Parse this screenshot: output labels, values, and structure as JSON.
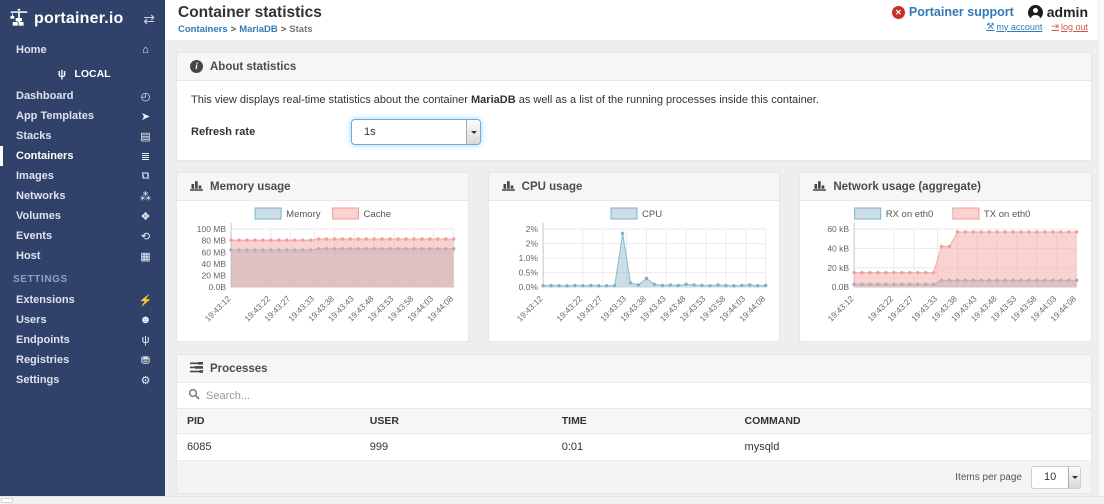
{
  "sidebar": {
    "logo_text": "portainer.io",
    "home": {
      "label": "Home",
      "icon": "home-icon"
    },
    "endpoint": {
      "label": "LOCAL",
      "icon": "plug-icon"
    },
    "menu": [
      {
        "label": "Dashboard",
        "icon": "dashboard-icon"
      },
      {
        "label": "App Templates",
        "icon": "rocket-icon"
      },
      {
        "label": "Stacks",
        "icon": "stacks-icon"
      },
      {
        "label": "Containers",
        "icon": "containers-icon",
        "active": true
      },
      {
        "label": "Images",
        "icon": "images-icon"
      },
      {
        "label": "Networks",
        "icon": "networks-icon"
      },
      {
        "label": "Volumes",
        "icon": "volumes-icon"
      },
      {
        "label": "Events",
        "icon": "events-icon"
      },
      {
        "label": "Host",
        "icon": "host-icon"
      }
    ],
    "settings_header": "SETTINGS",
    "settings_menu": [
      {
        "label": "Extensions",
        "icon": "bolt-icon"
      },
      {
        "label": "Users",
        "icon": "users-icon"
      },
      {
        "label": "Endpoints",
        "icon": "endpoints-icon"
      },
      {
        "label": "Registries",
        "icon": "registries-icon"
      },
      {
        "label": "Settings",
        "icon": "gear-icon"
      }
    ]
  },
  "header": {
    "title": "Container statistics",
    "breadcrumb": [
      "Containers",
      "MariaDB",
      "Stats"
    ],
    "breadcrumb_separator": ">",
    "support_label": "Portainer support",
    "username": "admin",
    "my_account_label": "my account",
    "log_out_label": "log out"
  },
  "about": {
    "title": "About statistics",
    "desc_pre": "This view displays real-time statistics about the container ",
    "container_name": "MariaDB",
    "desc_post": " as well as a list of the running processes inside this container.",
    "refresh_label": "Refresh rate",
    "refresh_value": "1s"
  },
  "chart_data": [
    {
      "type": "line",
      "title": "Memory usage",
      "x_start_label": "19:43:12",
      "x_interval_seconds": 2,
      "x_tick_labels": [
        "19:43:12",
        "19:43:22",
        "19:43:27",
        "19:43:33",
        "19:43:38",
        "19:43:43",
        "19:43:48",
        "19:43:53",
        "19:43:58",
        "19:44:03",
        "19:44:08"
      ],
      "x_tick_indices": [
        0,
        5,
        7.5,
        10.5,
        13,
        15.5,
        18,
        20.5,
        23,
        25.5,
        28
      ],
      "y_ticks": [
        {
          "label": "100 MB",
          "value": 100
        },
        {
          "label": "80 MB",
          "value": 80
        },
        {
          "label": "60 MB",
          "value": 60
        },
        {
          "label": "40 MB",
          "value": 40
        },
        {
          "label": "20 MB",
          "value": 20
        },
        {
          "label": "0.0B",
          "value": 0
        }
      ],
      "y_max": 100,
      "legend_position": "top",
      "grid": true,
      "series": [
        {
          "name": "Memory",
          "color": "#7fb1cc",
          "fill": "rgba(151,187,205,0.5)",
          "values": [
            64,
            64,
            64,
            64,
            64,
            64,
            64,
            64,
            64,
            64,
            64,
            66,
            66,
            66,
            66,
            66,
            66,
            66,
            66,
            66,
            66,
            66,
            66,
            66,
            66,
            66,
            66,
            66,
            66
          ]
        },
        {
          "name": "Cache",
          "color": "#f19e9e",
          "fill": "rgba(245,166,160,0.5)",
          "values": [
            81,
            81,
            81,
            81,
            81,
            81,
            81,
            81,
            81,
            81,
            81,
            83,
            83,
            83,
            83,
            83,
            83,
            83,
            83,
            83,
            83,
            83,
            83,
            83,
            83,
            83,
            83,
            83,
            83
          ]
        }
      ]
    },
    {
      "type": "line",
      "title": "CPU usage",
      "x_start_label": "19:43:12",
      "x_interval_seconds": 2,
      "x_tick_labels": [
        "19:43:12",
        "19:43:22",
        "19:43:27",
        "19:43:33",
        "19:43:38",
        "19:43:43",
        "19:43:48",
        "19:43:53",
        "19:43:58",
        "19:44:03",
        "19:44:08"
      ],
      "x_tick_indices": [
        0,
        5,
        7.5,
        10.5,
        13,
        15.5,
        18,
        20.5,
        23,
        25.5,
        28
      ],
      "y_ticks": [
        {
          "label": "2%",
          "value": 2
        },
        {
          "label": "2%",
          "value": 1.5
        },
        {
          "label": "1.0%",
          "value": 1
        },
        {
          "label": "0.5%",
          "value": 0.5
        },
        {
          "label": "0.0%",
          "value": 0
        }
      ],
      "y_max": 2,
      "legend_position": "top",
      "grid": true,
      "series": [
        {
          "name": "CPU",
          "color": "#7fb1cc",
          "fill": "rgba(151,187,205,0.5)",
          "values": [
            0.05,
            0.06,
            0.05,
            0.05,
            0.06,
            0.05,
            0.06,
            0.05,
            0.05,
            0.06,
            1.85,
            0.15,
            0.08,
            0.3,
            0.1,
            0.06,
            0.08,
            0.06,
            0.1,
            0.08,
            0.06,
            0.05,
            0.08,
            0.06,
            0.05,
            0.06,
            0.08,
            0.05,
            0.06
          ]
        }
      ]
    },
    {
      "type": "line",
      "title": "Network usage (aggregate)",
      "x_start_label": "19:43:12",
      "x_interval_seconds": 2,
      "x_tick_labels": [
        "19:43:12",
        "19:43:22",
        "19:43:27",
        "19:43:33",
        "19:43:38",
        "19:43:43",
        "19:43:48",
        "19:43:53",
        "19:43:58",
        "19:44:03",
        "19:44:08"
      ],
      "x_tick_indices": [
        0,
        5,
        7.5,
        10.5,
        13,
        15.5,
        18,
        20.5,
        23,
        25.5,
        28
      ],
      "y_ticks": [
        {
          "label": "60 kB",
          "value": 60
        },
        {
          "label": "40 kB",
          "value": 40
        },
        {
          "label": "20 kB",
          "value": 20
        },
        {
          "label": "0.0B",
          "value": 0
        }
      ],
      "y_max": 60,
      "legend_position": "top",
      "grid": true,
      "series": [
        {
          "name": "RX on eth0",
          "color": "#7fb1cc",
          "fill": "rgba(151,187,205,0.5)",
          "values": [
            3,
            3,
            3,
            3,
            3,
            3,
            3,
            3,
            3,
            3,
            3,
            7,
            7,
            7,
            7,
            7,
            7,
            7,
            7,
            7,
            7,
            7,
            7,
            7,
            7,
            7,
            7,
            7,
            7
          ]
        },
        {
          "name": "TX on eth0",
          "color": "#f19e9e",
          "fill": "rgba(245,166,160,0.5)",
          "values": [
            15,
            15,
            15,
            15,
            15,
            15,
            15,
            15,
            15,
            15,
            15,
            42,
            42,
            57,
            57,
            57,
            57,
            57,
            57,
            57,
            57,
            57,
            57,
            57,
            57,
            57,
            57,
            57,
            57
          ]
        }
      ]
    }
  ],
  "processes": {
    "title": "Processes",
    "search_placeholder": "Search...",
    "columns": [
      "PID",
      "USER",
      "TIME",
      "COMMAND"
    ],
    "rows": [
      [
        "6085",
        "999",
        "0:01",
        "mysqld"
      ]
    ],
    "items_per_page_label": "Items per page",
    "items_per_page_value": "10"
  },
  "colors": {
    "sidebar_bg": "#30426a",
    "accent_blue": "#337ab7",
    "danger_red": "#d9534f",
    "page_bg": "#edeef0",
    "series_blue": "#7fb1cc",
    "series_pink": "#f19e9e"
  }
}
